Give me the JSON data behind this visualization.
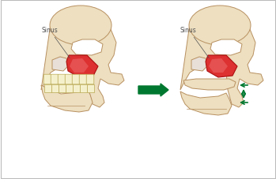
{
  "bg_color": "#ffffff",
  "bone_fill": "#eddfc0",
  "bone_edge": "#b89060",
  "bone_edge2": "#c8a878",
  "sinus_red": "#dd3030",
  "sinus_light": "#ee7070",
  "teeth_fill": "#f5f0cc",
  "teeth_edge": "#b8a850",
  "arrow_green": "#007830",
  "text_color": "#505050",
  "border_color": "#bbbbbb",
  "sinus_label": "Sinus",
  "fig_width": 3.49,
  "fig_height": 2.28,
  "dpi": 100
}
